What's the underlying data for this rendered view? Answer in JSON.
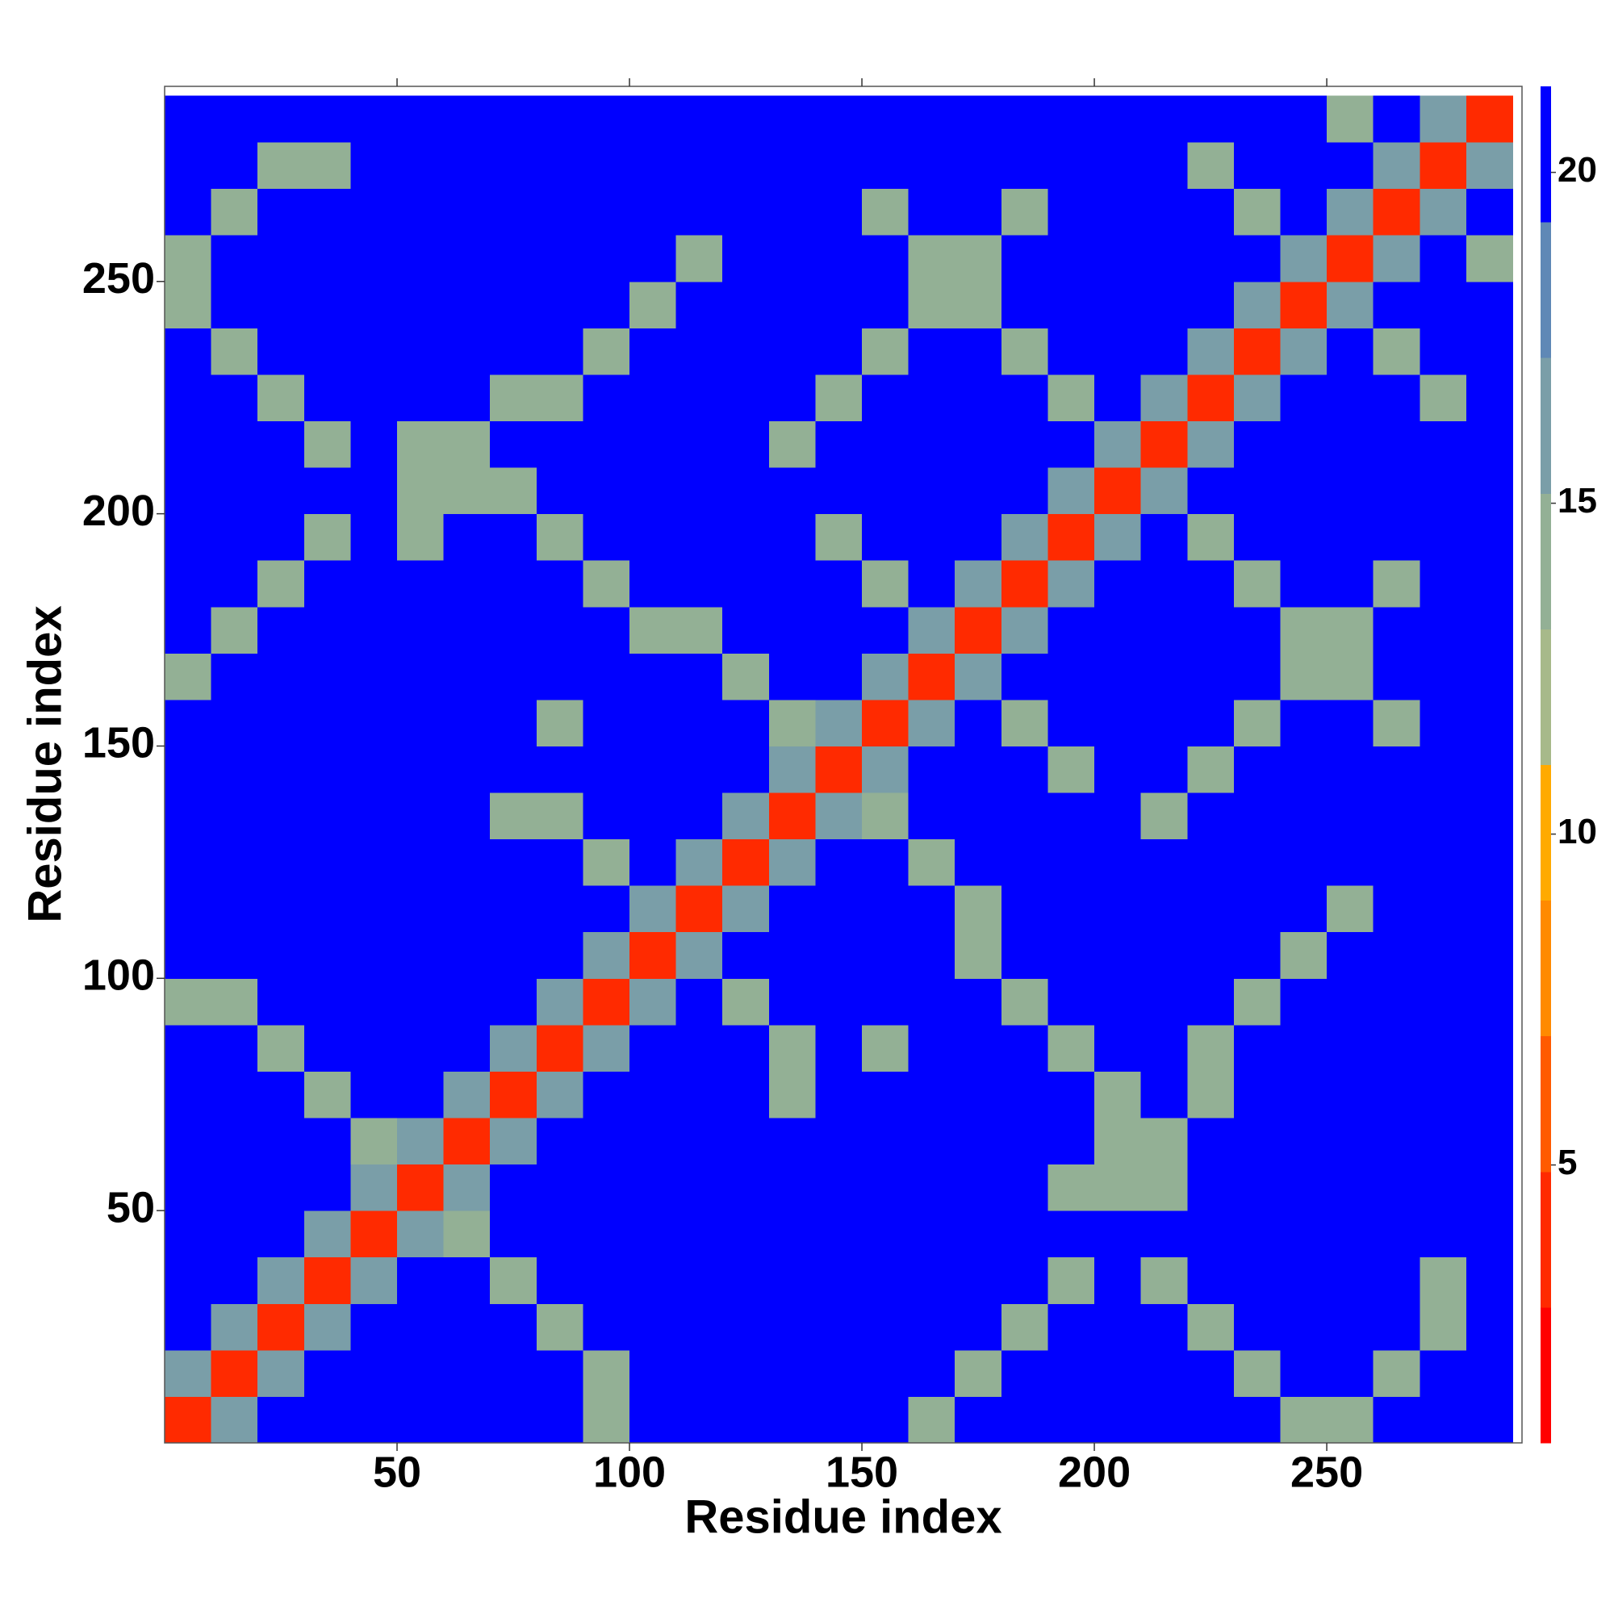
{
  "chart_data": {
    "type": "heatmap",
    "x_label": "Residue index",
    "y_label": "Residue index",
    "x": [
      5,
      15,
      25,
      35,
      45,
      55,
      65,
      75,
      85,
      95,
      105,
      115,
      125,
      135,
      145,
      155,
      165,
      175,
      185,
      195,
      205,
      215,
      225,
      235,
      245,
      255,
      265,
      275,
      285
    ],
    "y": [
      5,
      15,
      25,
      35,
      45,
      55,
      65,
      75,
      85,
      95,
      105,
      115,
      125,
      135,
      145,
      155,
      165,
      175,
      185,
      195,
      205,
      215,
      225,
      235,
      245,
      255,
      265,
      275,
      285
    ],
    "z": [
      [
        3,
        16,
        21,
        21,
        21,
        21,
        21,
        21,
        21,
        14,
        21,
        21,
        21,
        21,
        21,
        21,
        14,
        21,
        21,
        21,
        21,
        21,
        21,
        21,
        14,
        14,
        21,
        21,
        21
      ],
      [
        16,
        3,
        16,
        21,
        21,
        21,
        21,
        21,
        21,
        14,
        21,
        21,
        21,
        21,
        21,
        21,
        21,
        14,
        21,
        21,
        21,
        21,
        21,
        14,
        21,
        21,
        14,
        21,
        21
      ],
      [
        21,
        16,
        3,
        16,
        21,
        21,
        21,
        21,
        14,
        21,
        21,
        21,
        21,
        21,
        21,
        21,
        21,
        21,
        14,
        21,
        21,
        21,
        14,
        21,
        21,
        21,
        21,
        14,
        21
      ],
      [
        21,
        21,
        16,
        3,
        16,
        21,
        21,
        14,
        21,
        21,
        21,
        21,
        21,
        21,
        21,
        21,
        21,
        21,
        21,
        14,
        21,
        14,
        21,
        21,
        21,
        21,
        21,
        14,
        21
      ],
      [
        21,
        21,
        21,
        16,
        3,
        16,
        14,
        21,
        21,
        21,
        21,
        21,
        21,
        21,
        21,
        21,
        21,
        21,
        21,
        21,
        21,
        21,
        21,
        21,
        21,
        21,
        21,
        21,
        21
      ],
      [
        21,
        21,
        21,
        21,
        16,
        3,
        16,
        21,
        21,
        21,
        21,
        21,
        21,
        21,
        21,
        21,
        21,
        21,
        21,
        14,
        14,
        14,
        21,
        21,
        21,
        21,
        21,
        21,
        21
      ],
      [
        21,
        21,
        21,
        21,
        14,
        16,
        3,
        16,
        21,
        21,
        21,
        21,
        21,
        21,
        21,
        21,
        21,
        21,
        21,
        21,
        14,
        14,
        21,
        21,
        21,
        21,
        21,
        21,
        21
      ],
      [
        21,
        21,
        21,
        14,
        21,
        21,
        16,
        3,
        16,
        21,
        21,
        21,
        21,
        14,
        21,
        21,
        21,
        21,
        21,
        21,
        14,
        21,
        14,
        21,
        21,
        21,
        21,
        21,
        21
      ],
      [
        21,
        21,
        14,
        21,
        21,
        21,
        21,
        16,
        3,
        16,
        21,
        21,
        21,
        14,
        21,
        14,
        21,
        21,
        21,
        14,
        21,
        21,
        14,
        21,
        21,
        21,
        21,
        21,
        21
      ],
      [
        14,
        14,
        21,
        21,
        21,
        21,
        21,
        21,
        16,
        3,
        16,
        21,
        14,
        21,
        21,
        21,
        21,
        21,
        14,
        21,
        21,
        21,
        21,
        14,
        21,
        21,
        21,
        21,
        21
      ],
      [
        21,
        21,
        21,
        21,
        21,
        21,
        21,
        21,
        21,
        16,
        3,
        16,
        21,
        21,
        21,
        21,
        21,
        14,
        21,
        21,
        21,
        21,
        21,
        21,
        14,
        21,
        21,
        21,
        21
      ],
      [
        21,
        21,
        21,
        21,
        21,
        21,
        21,
        21,
        21,
        21,
        16,
        3,
        16,
        21,
        21,
        21,
        21,
        14,
        21,
        21,
        21,
        21,
        21,
        21,
        21,
        14,
        21,
        21,
        21
      ],
      [
        21,
        21,
        21,
        21,
        21,
        21,
        21,
        21,
        21,
        14,
        21,
        16,
        3,
        16,
        21,
        21,
        14,
        21,
        21,
        21,
        21,
        21,
        21,
        21,
        21,
        21,
        21,
        21,
        21
      ],
      [
        21,
        21,
        21,
        21,
        21,
        21,
        21,
        14,
        14,
        21,
        21,
        21,
        16,
        3,
        16,
        14,
        21,
        21,
        21,
        21,
        21,
        14,
        21,
        21,
        21,
        21,
        21,
        21,
        21
      ],
      [
        21,
        21,
        21,
        21,
        21,
        21,
        21,
        21,
        21,
        21,
        21,
        21,
        21,
        16,
        3,
        16,
        21,
        21,
        21,
        14,
        21,
        21,
        14,
        21,
        21,
        21,
        21,
        21,
        21
      ],
      [
        21,
        21,
        21,
        21,
        21,
        21,
        21,
        21,
        14,
        21,
        21,
        21,
        21,
        14,
        16,
        3,
        16,
        21,
        14,
        21,
        21,
        21,
        21,
        14,
        21,
        21,
        14,
        21,
        21
      ],
      [
        14,
        21,
        21,
        21,
        21,
        21,
        21,
        21,
        21,
        21,
        21,
        21,
        14,
        21,
        21,
        16,
        3,
        16,
        21,
        21,
        21,
        21,
        21,
        21,
        14,
        14,
        21,
        21,
        21
      ],
      [
        21,
        14,
        21,
        21,
        21,
        21,
        21,
        21,
        21,
        21,
        14,
        14,
        21,
        21,
        21,
        21,
        16,
        3,
        16,
        21,
        21,
        21,
        21,
        21,
        14,
        14,
        21,
        21,
        21
      ],
      [
        21,
        21,
        14,
        21,
        21,
        21,
        21,
        21,
        21,
        14,
        21,
        21,
        21,
        21,
        21,
        14,
        21,
        16,
        3,
        16,
        21,
        21,
        21,
        14,
        21,
        21,
        14,
        21,
        21
      ],
      [
        21,
        21,
        21,
        14,
        21,
        14,
        21,
        21,
        14,
        21,
        21,
        21,
        21,
        21,
        14,
        21,
        21,
        21,
        16,
        3,
        16,
        21,
        14,
        21,
        21,
        21,
        21,
        21,
        21
      ],
      [
        21,
        21,
        21,
        21,
        21,
        14,
        14,
        14,
        21,
        21,
        21,
        21,
        21,
        21,
        21,
        21,
        21,
        21,
        21,
        16,
        3,
        16,
        21,
        21,
        21,
        21,
        21,
        21,
        21
      ],
      [
        21,
        21,
        21,
        14,
        21,
        14,
        14,
        21,
        21,
        21,
        21,
        21,
        21,
        14,
        21,
        21,
        21,
        21,
        21,
        21,
        16,
        3,
        16,
        21,
        21,
        21,
        21,
        21,
        21
      ],
      [
        21,
        21,
        14,
        21,
        21,
        21,
        21,
        14,
        14,
        21,
        21,
        21,
        21,
        21,
        14,
        21,
        21,
        21,
        21,
        14,
        21,
        16,
        3,
        16,
        21,
        21,
        21,
        14,
        21
      ],
      [
        21,
        14,
        21,
        21,
        21,
        21,
        21,
        21,
        21,
        14,
        21,
        21,
        21,
        21,
        21,
        14,
        21,
        21,
        14,
        21,
        21,
        21,
        16,
        3,
        16,
        21,
        14,
        21,
        21
      ],
      [
        14,
        21,
        21,
        21,
        21,
        21,
        21,
        21,
        21,
        21,
        14,
        21,
        21,
        21,
        21,
        21,
        14,
        14,
        21,
        21,
        21,
        21,
        21,
        16,
        3,
        16,
        21,
        21,
        21
      ],
      [
        14,
        21,
        21,
        21,
        21,
        21,
        21,
        21,
        21,
        21,
        21,
        14,
        21,
        21,
        21,
        21,
        14,
        14,
        21,
        21,
        21,
        21,
        21,
        21,
        16,
        3,
        16,
        21,
        14
      ],
      [
        21,
        14,
        21,
        21,
        21,
        21,
        21,
        21,
        21,
        21,
        21,
        21,
        21,
        21,
        21,
        14,
        21,
        21,
        14,
        21,
        21,
        21,
        21,
        14,
        21,
        16,
        3,
        16,
        21
      ],
      [
        21,
        21,
        14,
        14,
        21,
        21,
        21,
        21,
        21,
        21,
        21,
        21,
        21,
        21,
        21,
        21,
        21,
        21,
        21,
        21,
        21,
        21,
        14,
        21,
        21,
        21,
        16,
        3,
        16
      ],
      [
        21,
        21,
        21,
        21,
        21,
        21,
        21,
        21,
        21,
        21,
        21,
        21,
        21,
        21,
        21,
        21,
        21,
        21,
        21,
        21,
        21,
        21,
        21,
        21,
        21,
        14,
        21,
        16,
        3
      ]
    ],
    "xlim": [
      0,
      292
    ],
    "ylim": [
      0,
      292
    ],
    "xticks": [
      50,
      100,
      150,
      200,
      250
    ],
    "yticks": [
      50,
      100,
      150,
      200,
      250
    ],
    "clim": [
      0.8,
      21.3
    ],
    "cticks": [
      5,
      10,
      15,
      20
    ],
    "colors": [
      "#ff0000",
      "#ff2a00",
      "#ff5a00",
      "#ff8a00",
      "#ffaa00",
      "#a7b98a",
      "#93b095",
      "#7a9ea8",
      "#5f88b6",
      "#0000ff"
    ]
  }
}
